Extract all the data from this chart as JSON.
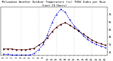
{
  "title": "Milwaukee Weather Outdoor Temperature (vs) THSW Index per Hour (Last 24 Hours)",
  "hours": [
    0,
    1,
    2,
    3,
    4,
    5,
    6,
    7,
    8,
    9,
    10,
    11,
    12,
    13,
    14,
    15,
    16,
    17,
    18,
    19,
    20,
    21,
    22,
    23
  ],
  "temp": [
    29,
    29,
    29,
    28,
    28,
    28,
    29,
    30,
    34,
    38,
    44,
    52,
    58,
    62,
    64,
    61,
    57,
    53,
    49,
    45,
    41,
    38,
    36,
    34
  ],
  "thsw": [
    22,
    22,
    21,
    21,
    21,
    21,
    21,
    23,
    28,
    35,
    48,
    64,
    75,
    82,
    78,
    68,
    60,
    54,
    47,
    42,
    38,
    35,
    33,
    31
  ],
  "temp_color": "#cc0000",
  "thsw_color": "#0000cc",
  "dot_color": "#000000",
  "bg_color": "#ffffff",
  "grid_color": "#aaaaaa",
  "ylim": [
    20,
    85
  ],
  "ytick_labels": [
    "75",
    "65",
    "55",
    "45",
    "35",
    "25"
  ],
  "ytick_vals": [
    75,
    65,
    55,
    45,
    35,
    25
  ],
  "vgrid_hours": [
    4,
    8,
    12,
    16,
    20
  ],
  "title_fontsize": 2.8,
  "tick_fontsize": 2.5
}
